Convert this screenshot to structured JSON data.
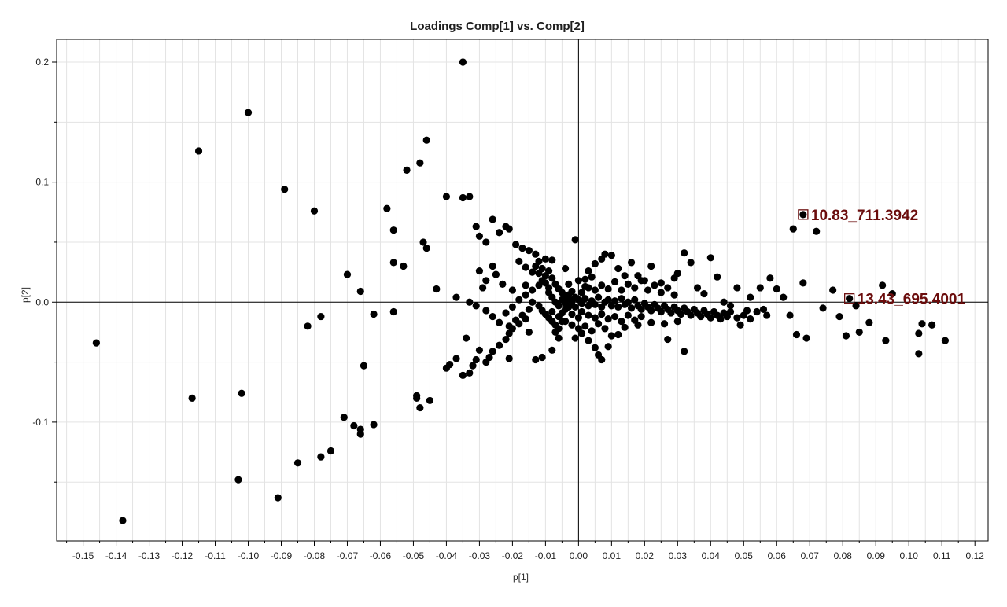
{
  "chart_data": {
    "type": "scatter",
    "title": "Loadings Comp[1] vs. Comp[2]",
    "xlabel": "p[1]",
    "ylabel": "p[2]",
    "xlim": [
      -0.158,
      0.124
    ],
    "ylim": [
      -0.199,
      0.219
    ],
    "x_ticks": [
      "-0.15",
      "-0.14",
      "-0.13",
      "-0.12",
      "-0.11",
      "-0.10",
      "-0.09",
      "-0.08",
      "-0.07",
      "-0.06",
      "-0.05",
      "-0.04",
      "-0.03",
      "-0.02",
      "-0.01",
      "0.00",
      "0.01",
      "0.02",
      "0.03",
      "0.04",
      "0.05",
      "0.06",
      "0.07",
      "0.08",
      "0.09",
      "0.10",
      "0.11",
      "0.12"
    ],
    "y_ticks": [
      "-0.1",
      "0.0",
      "0.1",
      "0.2"
    ],
    "grid": true,
    "colors": {
      "points": "#000000",
      "highlight": "#6b0d0d",
      "grid": "#e3e3e3",
      "axis": "#000000"
    },
    "highlighted": [
      {
        "label": "10.83_711.3942",
        "x": 0.068,
        "y": 0.073
      },
      {
        "label": "13.43_695.4001",
        "x": 0.082,
        "y": 0.003
      }
    ],
    "points": [
      [
        -0.035,
        0.2
      ],
      [
        -0.1,
        0.158
      ],
      [
        -0.115,
        0.126
      ],
      [
        -0.046,
        0.135
      ],
      [
        -0.048,
        0.116
      ],
      [
        -0.052,
        0.11
      ],
      [
        -0.089,
        0.094
      ],
      [
        -0.08,
        0.076
      ],
      [
        -0.058,
        0.078
      ],
      [
        -0.04,
        0.088
      ],
      [
        -0.035,
        0.087
      ],
      [
        -0.033,
        0.088
      ],
      [
        -0.056,
        0.06
      ],
      [
        -0.047,
        0.05
      ],
      [
        -0.046,
        0.045
      ],
      [
        -0.056,
        0.033
      ],
      [
        -0.053,
        0.03
      ],
      [
        -0.07,
        0.023
      ],
      [
        -0.066,
        0.009
      ],
      [
        -0.043,
        0.011
      ],
      [
        -0.146,
        -0.034
      ],
      [
        -0.078,
        -0.012
      ],
      [
        -0.082,
        -0.02
      ],
      [
        -0.062,
        -0.01
      ],
      [
        -0.056,
        -0.008
      ],
      [
        -0.117,
        -0.08
      ],
      [
        -0.102,
        -0.076
      ],
      [
        -0.065,
        -0.053
      ],
      [
        -0.049,
        -0.078
      ],
      [
        -0.049,
        -0.08
      ],
      [
        -0.048,
        -0.088
      ],
      [
        -0.045,
        -0.082
      ],
      [
        -0.071,
        -0.096
      ],
      [
        -0.068,
        -0.103
      ],
      [
        -0.066,
        -0.106
      ],
      [
        -0.066,
        -0.11
      ],
      [
        -0.062,
        -0.102
      ],
      [
        -0.075,
        -0.124
      ],
      [
        -0.078,
        -0.129
      ],
      [
        -0.085,
        -0.134
      ],
      [
        -0.103,
        -0.148
      ],
      [
        -0.091,
        -0.163
      ],
      [
        -0.138,
        -0.182
      ],
      [
        -0.04,
        -0.055
      ],
      [
        -0.039,
        -0.052
      ],
      [
        -0.037,
        -0.047
      ],
      [
        -0.035,
        -0.061
      ],
      [
        -0.033,
        -0.059
      ],
      [
        -0.032,
        -0.053
      ],
      [
        -0.031,
        -0.048
      ],
      [
        -0.034,
        -0.03
      ],
      [
        -0.03,
        -0.04
      ],
      [
        -0.028,
        -0.05
      ],
      [
        -0.027,
        -0.046
      ],
      [
        -0.026,
        -0.041
      ],
      [
        -0.024,
        -0.036
      ],
      [
        -0.022,
        -0.031
      ],
      [
        -0.021,
        -0.047
      ],
      [
        -0.021,
        -0.026
      ],
      [
        -0.02,
        -0.022
      ],
      [
        -0.018,
        -0.018
      ],
      [
        -0.016,
        -0.014
      ],
      [
        -0.013,
        -0.048
      ],
      [
        -0.011,
        -0.046
      ],
      [
        -0.015,
        -0.025
      ],
      [
        -0.008,
        -0.04
      ],
      [
        -0.006,
        -0.022
      ],
      [
        -0.031,
        0.063
      ],
      [
        -0.03,
        0.055
      ],
      [
        -0.028,
        0.05
      ],
      [
        -0.026,
        0.069
      ],
      [
        -0.024,
        0.058
      ],
      [
        -0.022,
        0.063
      ],
      [
        -0.021,
        0.061
      ],
      [
        -0.019,
        0.048
      ],
      [
        -0.017,
        0.045
      ],
      [
        -0.015,
        0.043
      ],
      [
        -0.013,
        0.04
      ],
      [
        -0.008,
        0.035
      ],
      [
        -0.004,
        0.028
      ],
      [
        -0.001,
        0.052
      ],
      [
        -0.03,
        0.026
      ],
      [
        -0.029,
        0.012
      ],
      [
        -0.028,
        0.018
      ],
      [
        -0.026,
        0.03
      ],
      [
        -0.025,
        0.023
      ],
      [
        -0.023,
        0.015
      ],
      [
        -0.02,
        0.01
      ],
      [
        -0.018,
        0.034
      ],
      [
        -0.016,
        0.029
      ],
      [
        -0.014,
        0.025
      ],
      [
        -0.037,
        0.004
      ],
      [
        -0.033,
        0.0
      ],
      [
        -0.031,
        -0.003
      ],
      [
        -0.028,
        -0.007
      ],
      [
        -0.026,
        -0.012
      ],
      [
        -0.024,
        -0.017
      ],
      [
        -0.022,
        -0.009
      ],
      [
        -0.02,
        -0.004
      ],
      [
        -0.018,
        0.002
      ],
      [
        -0.016,
        0.006
      ],
      [
        -0.014,
        0.01
      ],
      [
        -0.012,
        0.014
      ],
      [
        -0.011,
        0.018
      ],
      [
        -0.01,
        0.022
      ],
      [
        -0.009,
        0.026
      ],
      [
        -0.008,
        0.02
      ],
      [
        -0.007,
        0.015
      ],
      [
        -0.006,
        0.011
      ],
      [
        -0.005,
        0.008
      ],
      [
        -0.004,
        0.005
      ],
      [
        -0.003,
        0.003
      ],
      [
        -0.002,
        0.001
      ],
      [
        -0.012,
        -0.003
      ],
      [
        -0.011,
        -0.007
      ],
      [
        -0.01,
        -0.01
      ],
      [
        -0.009,
        -0.013
      ],
      [
        -0.008,
        -0.016
      ],
      [
        -0.007,
        -0.019
      ],
      [
        -0.006,
        -0.012
      ],
      [
        -0.005,
        -0.009
      ],
      [
        -0.004,
        -0.006
      ],
      [
        -0.003,
        -0.004
      ],
      [
        -0.002,
        -0.002
      ],
      [
        -0.013,
        0.03
      ],
      [
        -0.012,
        0.034
      ],
      [
        -0.01,
        0.036
      ],
      [
        -0.009,
        0.008
      ],
      [
        -0.008,
        0.004
      ],
      [
        -0.007,
        0.0
      ],
      [
        -0.006,
        -0.003
      ],
      [
        -0.005,
        0.002
      ],
      [
        -0.004,
        -0.001
      ],
      [
        -0.003,
        0.006
      ],
      [
        -0.002,
        0.009
      ],
      [
        -0.001,
        0.004
      ],
      [
        -0.001,
        -0.004
      ],
      [
        -0.015,
        -0.006
      ],
      [
        -0.017,
        -0.011
      ],
      [
        -0.019,
        -0.015
      ],
      [
        -0.021,
        -0.02
      ],
      [
        -0.014,
        0.0
      ],
      [
        -0.016,
        0.014
      ],
      [
        -0.012,
        0.024
      ],
      [
        -0.011,
        0.028
      ],
      [
        -0.01,
        0.016
      ],
      [
        -0.009,
        0.012
      ],
      [
        -0.008,
        -0.008
      ],
      [
        -0.007,
        -0.025
      ],
      [
        -0.006,
        -0.03
      ],
      [
        -0.005,
        -0.016
      ],
      [
        0.0,
        0.002
      ],
      [
        0.001,
        -0.001
      ],
      [
        0.002,
        0.003
      ],
      [
        0.003,
        -0.003
      ],
      [
        0.004,
        0.001
      ],
      [
        0.005,
        -0.002
      ],
      [
        0.006,
        0.004
      ],
      [
        0.007,
        -0.004
      ],
      [
        0.008,
        0.0
      ],
      [
        0.009,
        0.002
      ],
      [
        0.01,
        -0.003
      ],
      [
        0.011,
        0.001
      ],
      [
        0.012,
        -0.004
      ],
      [
        0.013,
        0.003
      ],
      [
        0.014,
        -0.002
      ],
      [
        0.015,
        0.0
      ],
      [
        0.016,
        -0.005
      ],
      [
        0.017,
        0.002
      ],
      [
        0.018,
        -0.003
      ],
      [
        0.019,
        -0.006
      ],
      [
        0.02,
        -0.001
      ],
      [
        0.021,
        -0.004
      ],
      [
        0.022,
        -0.007
      ],
      [
        0.023,
        -0.002
      ],
      [
        0.024,
        -0.005
      ],
      [
        0.025,
        -0.008
      ],
      [
        0.026,
        -0.003
      ],
      [
        0.027,
        -0.006
      ],
      [
        0.028,
        -0.009
      ],
      [
        0.029,
        -0.004
      ],
      [
        0.03,
        -0.007
      ],
      [
        0.031,
        -0.01
      ],
      [
        0.032,
        -0.005
      ],
      [
        0.033,
        -0.008
      ],
      [
        0.034,
        -0.011
      ],
      [
        0.035,
        -0.006
      ],
      [
        0.036,
        -0.009
      ],
      [
        0.037,
        -0.012
      ],
      [
        0.038,
        -0.007
      ],
      [
        0.039,
        -0.01
      ],
      [
        0.04,
        -0.013
      ],
      [
        0.041,
        -0.008
      ],
      [
        0.042,
        -0.011
      ],
      [
        0.043,
        -0.014
      ],
      [
        0.044,
        -0.009
      ],
      [
        0.045,
        -0.012
      ],
      [
        0.046,
        -0.008
      ],
      [
        0.048,
        -0.013
      ],
      [
        0.05,
        -0.011
      ],
      [
        0.052,
        -0.014
      ],
      [
        0.001,
        0.008
      ],
      [
        0.003,
        0.012
      ],
      [
        0.005,
        0.01
      ],
      [
        0.007,
        0.014
      ],
      [
        0.009,
        0.011
      ],
      [
        0.011,
        0.017
      ],
      [
        0.013,
        0.01
      ],
      [
        0.015,
        0.015
      ],
      [
        0.017,
        0.012
      ],
      [
        0.019,
        0.018
      ],
      [
        0.021,
        0.01
      ],
      [
        0.023,
        0.014
      ],
      [
        0.025,
        0.008
      ],
      [
        0.027,
        0.012
      ],
      [
        0.029,
        0.006
      ],
      [
        0.001,
        -0.008
      ],
      [
        0.003,
        -0.011
      ],
      [
        0.005,
        -0.013
      ],
      [
        0.007,
        -0.01
      ],
      [
        0.009,
        -0.014
      ],
      [
        0.011,
        -0.012
      ],
      [
        0.013,
        -0.016
      ],
      [
        0.015,
        -0.011
      ],
      [
        0.017,
        -0.015
      ],
      [
        0.019,
        -0.012
      ],
      [
        0.002,
        -0.02
      ],
      [
        0.004,
        -0.024
      ],
      [
        0.006,
        -0.018
      ],
      [
        0.008,
        -0.022
      ],
      [
        0.01,
        -0.028
      ],
      [
        0.014,
        -0.021
      ],
      [
        0.018,
        -0.019
      ],
      [
        0.022,
        -0.017
      ],
      [
        0.026,
        -0.018
      ],
      [
        0.03,
        -0.016
      ],
      [
        -0.001,
        -0.03
      ],
      [
        0.001,
        -0.026
      ],
      [
        0.003,
        -0.032
      ],
      [
        0.005,
        -0.038
      ],
      [
        0.006,
        -0.044
      ],
      [
        0.007,
        -0.048
      ],
      [
        0.009,
        -0.037
      ],
      [
        0.012,
        -0.027
      ],
      [
        0.027,
        -0.031
      ],
      [
        0.032,
        -0.041
      ],
      [
        0.003,
        0.026
      ],
      [
        0.005,
        0.032
      ],
      [
        0.007,
        0.036
      ],
      [
        0.008,
        0.04
      ],
      [
        0.01,
        0.039
      ],
      [
        0.012,
        0.028
      ],
      [
        0.014,
        0.022
      ],
      [
        0.016,
        0.033
      ],
      [
        0.018,
        0.022
      ],
      [
        0.02,
        0.018
      ],
      [
        0.022,
        0.03
      ],
      [
        0.025,
        0.016
      ],
      [
        0.029,
        0.02
      ],
      [
        0.03,
        0.024
      ],
      [
        0.032,
        0.041
      ],
      [
        0.034,
        0.033
      ],
      [
        0.036,
        0.012
      ],
      [
        0.038,
        0.007
      ],
      [
        0.04,
        0.037
      ],
      [
        0.042,
        0.021
      ],
      [
        0.044,
        0.0
      ],
      [
        0.046,
        -0.003
      ],
      [
        0.048,
        0.012
      ],
      [
        0.049,
        -0.019
      ],
      [
        0.051,
        -0.007
      ],
      [
        0.052,
        0.004
      ],
      [
        0.054,
        -0.008
      ],
      [
        0.055,
        0.012
      ],
      [
        0.056,
        -0.006
      ],
      [
        0.057,
        -0.011
      ],
      [
        0.058,
        0.02
      ],
      [
        0.06,
        0.011
      ],
      [
        0.062,
        0.004
      ],
      [
        0.064,
        -0.011
      ],
      [
        0.066,
        -0.027
      ],
      [
        0.065,
        0.061
      ],
      [
        0.068,
        0.016
      ],
      [
        0.069,
        -0.03
      ],
      [
        0.072,
        0.059
      ],
      [
        0.074,
        -0.005
      ],
      [
        0.077,
        0.01
      ],
      [
        0.079,
        -0.012
      ],
      [
        0.081,
        -0.028
      ],
      [
        0.084,
        -0.003
      ],
      [
        0.085,
        -0.025
      ],
      [
        0.088,
        -0.017
      ],
      [
        0.092,
        0.014
      ],
      [
        0.093,
        -0.032
      ],
      [
        0.095,
        0.007
      ],
      [
        0.103,
        -0.026
      ],
      [
        0.103,
        -0.043
      ],
      [
        0.104,
        -0.018
      ],
      [
        0.107,
        -0.019
      ],
      [
        0.111,
        -0.032
      ],
      [
        -0.002,
        -0.01
      ],
      [
        0.0,
        -0.013
      ],
      [
        -0.003,
        0.015
      ],
      [
        0.0,
        0.018
      ],
      [
        0.002,
        0.019
      ],
      [
        0.004,
        0.021
      ],
      [
        -0.004,
        -0.016
      ],
      [
        -0.002,
        -0.019
      ],
      [
        0.0,
        -0.022
      ],
      [
        0.002,
        0.013
      ]
    ]
  }
}
